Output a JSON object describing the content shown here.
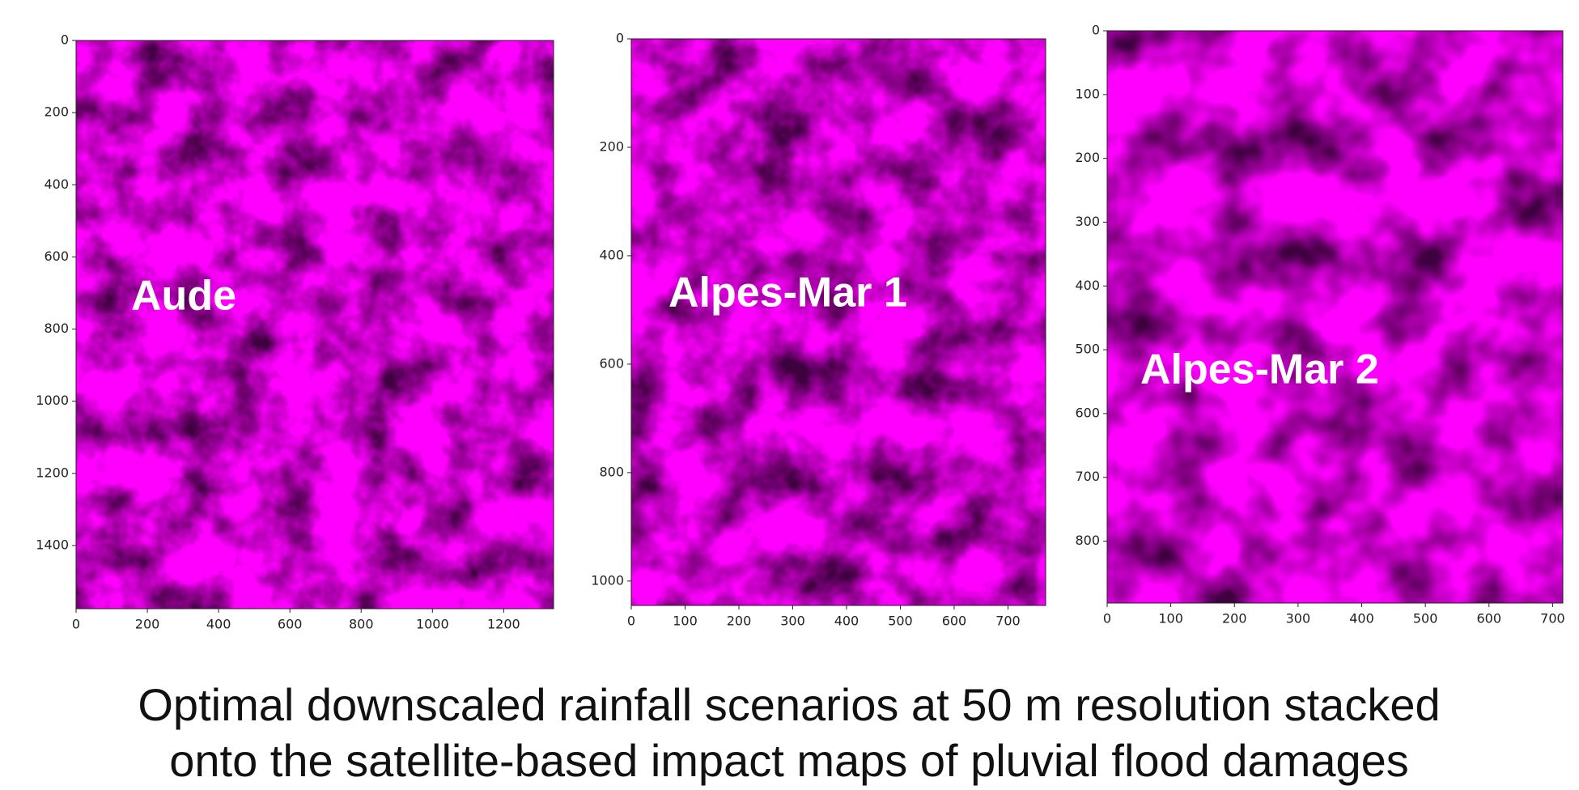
{
  "chart_data": [
    {
      "type": "image",
      "annotation": "Aude",
      "xlim": [
        0,
        1340
      ],
      "ylim": [
        1575,
        0
      ],
      "xticks": [
        0,
        200,
        400,
        600,
        800,
        1000,
        1200
      ],
      "yticks": [
        0,
        200,
        400,
        600,
        800,
        1000,
        1200,
        1400
      ]
    },
    {
      "type": "image",
      "annotation": "Alpes-Mar 1",
      "xlim": [
        0,
        770
      ],
      "ylim": [
        1045,
        0
      ],
      "xticks": [
        0,
        100,
        200,
        300,
        400,
        500,
        600,
        700
      ],
      "yticks": [
        0,
        200,
        400,
        600,
        800,
        1000
      ]
    },
    {
      "type": "image",
      "annotation": "Alpes-Mar 2",
      "xlim": [
        0,
        716
      ],
      "ylim": [
        897,
        0
      ],
      "xticks": [
        0,
        100,
        200,
        300,
        400,
        500,
        600,
        700
      ],
      "yticks": [
        0,
        100,
        200,
        300,
        400,
        500,
        600,
        700,
        800
      ]
    }
  ],
  "caption": [
    "Optimal downscaled rainfall scenarios at 50 m resolution stacked",
    "onto the satellite-based impact maps of pluvial flood damages"
  ]
}
